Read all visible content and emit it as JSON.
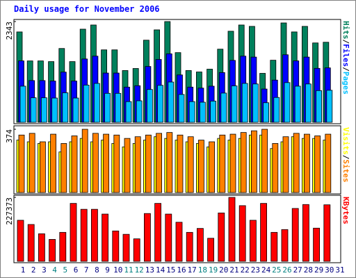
{
  "chart_data": [
    {
      "type": "bar",
      "title": "Daily usage for November 2006",
      "ylim": [
        0,
        2343
      ],
      "yticks": [
        2343
      ],
      "legend_separator": "/",
      "series": [
        {
          "name": "Hits",
          "color": "#00805c",
          "values": [
            2102,
            1428,
            1428,
            1412,
            1717,
            1412,
            2166,
            2263,
            1685,
            1685,
            1204,
            1252,
            1910,
            2150,
            2343,
            1621,
            1204,
            1171,
            1236,
            1701,
            2118,
            2263,
            2231,
            1139,
            1444,
            2311,
            2102,
            2231,
            1846,
            1862,
            null
          ]
        },
        {
          "name": "Files",
          "color": "#0000ff",
          "values": [
            1429,
            971,
            971,
            960,
            1168,
            960,
            1473,
            1539,
            1146,
            1146,
            819,
            851,
            1299,
            1462,
            1593,
            1102,
            819,
            796,
            841,
            1157,
            1440,
            1539,
            1517,
            775,
            982,
            1571,
            1429,
            1517,
            1255,
            1266,
            null
          ]
        },
        {
          "name": "Pages",
          "color": "#00c0ff",
          "values": [
            841,
            571,
            571,
            565,
            687,
            565,
            866,
            905,
            674,
            674,
            482,
            501,
            764,
            860,
            937,
            648,
            482,
            468,
            494,
            680,
            847,
            905,
            892,
            456,
            578,
            924,
            841,
            892,
            738,
            745,
            null
          ]
        }
      ]
    },
    {
      "type": "bar",
      "ylim": [
        0,
        374
      ],
      "yticks": [
        374
      ],
      "legend_separator": "/",
      "series": [
        {
          "name": "Visits",
          "color": "#ffff00",
          "values": [
            310,
            300,
            290,
            300,
            240,
            300,
            320,
            300,
            310,
            290,
            270,
            290,
            310,
            330,
            320,
            310,
            300,
            290,
            270,
            320,
            310,
            320,
            340,
            340,
            260,
            300,
            330,
            320,
            320,
            310,
            null
          ]
        },
        {
          "name": "Sites",
          "color": "#ff8000",
          "values": [
            340,
            350,
            300,
            345,
            290,
            335,
            374,
            350,
            345,
            340,
            320,
            330,
            340,
            350,
            355,
            340,
            330,
            310,
            300,
            340,
            345,
            355,
            365,
            374,
            290,
            330,
            350,
            345,
            335,
            345,
            null
          ]
        }
      ]
    },
    {
      "type": "bar",
      "ylim": [
        0,
        227373
      ],
      "yticks": [
        227373
      ],
      "categories": [
        "1",
        "2",
        "3",
        "4",
        "5",
        "6",
        "7",
        "8",
        "9",
        "10",
        "11",
        "12",
        "13",
        "14",
        "15",
        "16",
        "17",
        "18",
        "19",
        "20",
        "21",
        "22",
        "23",
        "24",
        "25",
        "26",
        "27",
        "28",
        "29",
        "30",
        "31"
      ],
      "category_colors": [
        "#000080",
        "#000080",
        "#000080",
        "#008080",
        "#008080",
        "#000080",
        "#000080",
        "#000080",
        "#000080",
        "#000080",
        "#008080",
        "#008080",
        "#000080",
        "#000080",
        "#000080",
        "#000080",
        "#000080",
        "#008080",
        "#008080",
        "#000080",
        "#000080",
        "#000080",
        "#000080",
        "#000080",
        "#008080",
        "#008080",
        "#000080",
        "#000080",
        "#000080",
        "#000080",
        "#000080"
      ],
      "series": [
        {
          "name": "KBytes",
          "color": "#ff0000",
          "values": [
            146000,
            131000,
            98000,
            78000,
            103000,
            206000,
            185000,
            185000,
            168000,
            108000,
            96000,
            80000,
            170000,
            206000,
            168000,
            139000,
            103000,
            117000,
            82000,
            172000,
            227373,
            198000,
            146000,
            206000,
            103000,
            113000,
            188000,
            202000,
            118000,
            201000,
            null
          ]
        }
      ]
    }
  ]
}
